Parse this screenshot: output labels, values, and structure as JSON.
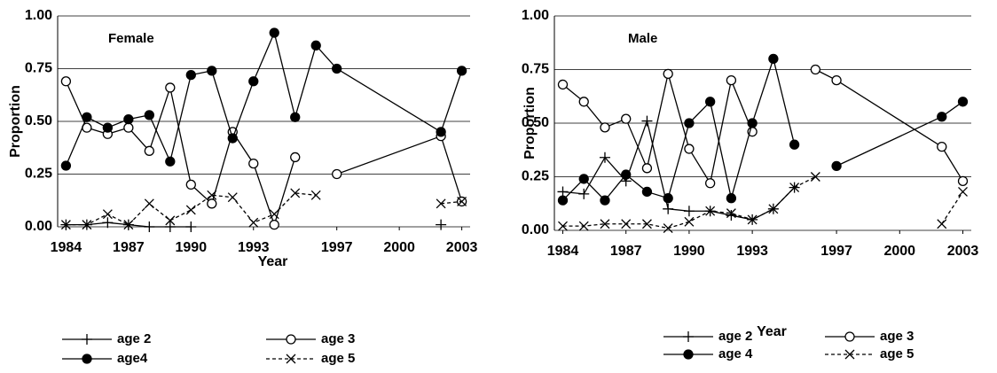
{
  "chart_data": [
    {
      "type": "line",
      "annotation": "Female",
      "y_label": "Proportion",
      "x_label": "Year",
      "x": [
        1984,
        1985,
        1986,
        1987,
        1988,
        1989,
        1990,
        1991,
        1992,
        1993,
        1994,
        1995,
        1996,
        1997,
        2002,
        2003
      ],
      "xlim": [
        1983.6,
        2003.4
      ],
      "xticks": [
        1984,
        1987,
        1990,
        1993,
        1997,
        2000,
        2003
      ],
      "ylim": [
        0,
        1
      ],
      "yticks": [
        {
          "value": 0,
          "label": "0.00"
        },
        {
          "value": 0.25,
          "label": "0.25"
        },
        {
          "value": 0.5,
          "label": "0.50"
        },
        {
          "value": 0.75,
          "label": "0.75"
        },
        {
          "value": 1,
          "label": "1.00"
        }
      ],
      "grid": true,
      "series": [
        {
          "name": "age 2",
          "color": "#000000",
          "marker": "plus",
          "dash": false,
          "values": [
            0.01,
            0.01,
            0.02,
            0.01,
            0,
            0,
            0,
            null,
            null,
            null,
            null,
            null,
            null,
            null,
            0.01,
            null
          ]
        },
        {
          "name": "age 3",
          "color": "#000000",
          "marker": "circle-open",
          "dash": false,
          "values": [
            0.69,
            0.47,
            0.44,
            0.47,
            0.36,
            0.66,
            0.2,
            0.11,
            0.45,
            0.3,
            0.01,
            0.33,
            null,
            0.25,
            0.43,
            0.12
          ]
        },
        {
          "name": "age4",
          "color": "#000000",
          "marker": "circle-filled",
          "dash": false,
          "values": [
            0.29,
            0.52,
            0.47,
            0.51,
            0.53,
            0.31,
            0.72,
            0.74,
            0.42,
            0.69,
            0.92,
            0.52,
            0.86,
            0.75,
            0.45,
            0.74
          ]
        },
        {
          "name": "age 5",
          "color": "#000000",
          "marker": "x",
          "dash": true,
          "values": [
            0.01,
            0.01,
            0.06,
            0.01,
            0.11,
            0.03,
            0.08,
            0.15,
            0.14,
            0.02,
            0.06,
            0.16,
            0.15,
            null,
            0.11,
            0.12
          ]
        }
      ]
    },
    {
      "type": "line",
      "annotation": "Male",
      "y_label": "Proportion",
      "x_label": "Year",
      "x": [
        1984,
        1985,
        1986,
        1987,
        1988,
        1989,
        1990,
        1991,
        1992,
        1993,
        1994,
        1995,
        1996,
        1997,
        2002,
        2003
      ],
      "xlim": [
        1983.6,
        2003.4
      ],
      "xticks": [
        1984,
        1987,
        1990,
        1993,
        1997,
        2000,
        2003
      ],
      "ylim": [
        0,
        1
      ],
      "yticks": [
        {
          "value": 0,
          "label": "0.00"
        },
        {
          "value": 0.25,
          "label": "0.25"
        },
        {
          "value": 0.5,
          "label": "0.50"
        },
        {
          "value": 0.75,
          "label": "0.75"
        },
        {
          "value": 1,
          "label": "1.00"
        }
      ],
      "grid": true,
      "series": [
        {
          "name": "age 2",
          "color": "#000000",
          "marker": "plus",
          "dash": false,
          "values": [
            0.18,
            0.17,
            0.34,
            0.23,
            0.51,
            0.1,
            0.09,
            0.09,
            0.07,
            0.05,
            0.1,
            0.2,
            null,
            null,
            null,
            null
          ]
        },
        {
          "name": "age 3",
          "color": "#000000",
          "marker": "circle-open",
          "dash": false,
          "values": [
            0.68,
            0.6,
            0.48,
            0.52,
            0.29,
            0.73,
            0.38,
            0.22,
            0.7,
            0.46,
            null,
            null,
            0.75,
            0.7,
            0.39,
            0.23
          ]
        },
        {
          "name": "age 4",
          "color": "#000000",
          "marker": "circle-filled",
          "dash": false,
          "values": [
            0.14,
            0.24,
            0.14,
            0.26,
            0.18,
            0.15,
            0.5,
            0.6,
            0.15,
            0.5,
            0.8,
            0.4,
            null,
            0.3,
            0.53,
            0.6
          ]
        },
        {
          "name": "age 5",
          "color": "#000000",
          "marker": "x",
          "dash": true,
          "values": [
            0.02,
            0.02,
            0.03,
            0.03,
            0.03,
            0.01,
            0.04,
            0.09,
            0.08,
            0.05,
            0.1,
            0.2,
            0.25,
            null,
            0.03,
            0.18
          ]
        }
      ]
    }
  ]
}
